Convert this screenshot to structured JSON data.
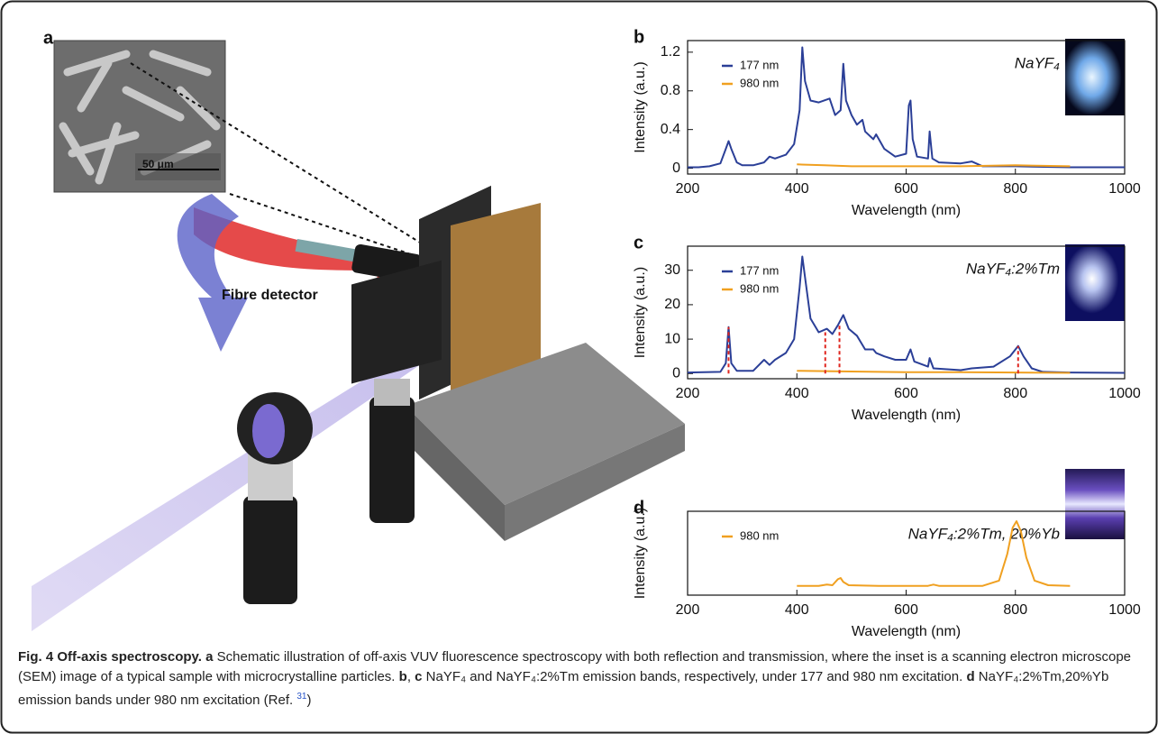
{
  "figure": {
    "panel_a": "a",
    "detector_label": "Fibre detector",
    "scale_bar": "50 μm"
  },
  "caption": {
    "title": "Fig. 4 Off-axis spectroscopy.",
    "a": "a",
    "text_a": " Schematic illustration of off-axis VUV fluorescence spectroscopy with both reflection and transmission, where the inset is a scanning electron microscope (SEM) image of a typical sample with microcrystalline particles.",
    "b": "b",
    "sep": ",",
    "c": "c",
    "text_bc": " NaYF₄ and NaYF₄:2%Tm emission bands, respectively, under 177 and 980 nm excitation.",
    "d": "d",
    "text_d": " NaYF₄:2%Tm,20%Yb emission bands under 980 nm excitation (Ref.",
    "ref": "31",
    "end": ")"
  },
  "chart_data": [
    {
      "type": "line",
      "panel": "b",
      "annotation": "NaYF₄",
      "xlabel": "Wavelength (nm)",
      "ylabel": "Intensity (a.u.)",
      "xlim": [
        200,
        1000
      ],
      "xticks": [
        200,
        400,
        600,
        800,
        1000
      ],
      "ylim": [
        -0.06,
        1.32
      ],
      "yticks": [
        0,
        0.4,
        0.8,
        1.2
      ],
      "series": [
        {
          "name": "177 nm",
          "color": "#2b3f97",
          "x": [
            200,
            220,
            240,
            260,
            270,
            275,
            280,
            290,
            300,
            320,
            340,
            350,
            360,
            380,
            395,
            405,
            410,
            415,
            425,
            440,
            460,
            470,
            480,
            485,
            490,
            500,
            510,
            520,
            525,
            540,
            545,
            560,
            580,
            600,
            605,
            608,
            612,
            620,
            640,
            643,
            648,
            660,
            700,
            720,
            740,
            800,
            900,
            1000
          ],
          "values": [
            0.01,
            0.01,
            0.02,
            0.05,
            0.2,
            0.28,
            0.2,
            0.06,
            0.03,
            0.03,
            0.06,
            0.12,
            0.1,
            0.14,
            0.25,
            0.6,
            1.25,
            0.9,
            0.7,
            0.68,
            0.72,
            0.55,
            0.6,
            1.08,
            0.7,
            0.55,
            0.45,
            0.5,
            0.38,
            0.3,
            0.35,
            0.2,
            0.12,
            0.15,
            0.65,
            0.7,
            0.3,
            0.12,
            0.1,
            0.38,
            0.1,
            0.06,
            0.05,
            0.07,
            0.02,
            0.02,
            0.01,
            0.01
          ]
        },
        {
          "name": "980 nm",
          "color": "#f0a020",
          "x": [
            400,
            450,
            500,
            600,
            700,
            800,
            900
          ],
          "values": [
            0.04,
            0.03,
            0.02,
            0.02,
            0.02,
            0.03,
            0.02
          ]
        }
      ]
    },
    {
      "type": "line",
      "panel": "c",
      "annotation": "NaYF₄:2%Tm",
      "xlabel": "Wavelength (nm)",
      "ylabel": "Intensity (a.u.)",
      "xlim": [
        200,
        1000
      ],
      "xticks": [
        200,
        400,
        600,
        800,
        1000
      ],
      "ylim": [
        -1.5,
        37
      ],
      "yticks": [
        0,
        10,
        20,
        30
      ],
      "series": [
        {
          "name": "177 nm",
          "color": "#2b3f97",
          "x": [
            200,
            260,
            270,
            275,
            280,
            290,
            320,
            340,
            350,
            360,
            380,
            395,
            405,
            410,
            415,
            425,
            440,
            455,
            465,
            475,
            485,
            495,
            510,
            525,
            540,
            545,
            560,
            580,
            600,
            608,
            615,
            640,
            643,
            650,
            700,
            720,
            760,
            790,
            805,
            815,
            830,
            850,
            900,
            1000
          ],
          "values": [
            0.3,
            0.5,
            3,
            13.5,
            3,
            0.8,
            0.8,
            4,
            2.5,
            4,
            6,
            10,
            25,
            34,
            28,
            16,
            12,
            13,
            11.5,
            14,
            17,
            13,
            11,
            7,
            7,
            6,
            5,
            4,
            4,
            7,
            3.5,
            2,
            4.5,
            1.5,
            1,
            1.5,
            2,
            5,
            8,
            5,
            1.5,
            0.5,
            0.3,
            0.2
          ]
        },
        {
          "name": "980 nm",
          "color": "#f0a020",
          "x": [
            400,
            500,
            600,
            700,
            800,
            900
          ],
          "values": [
            0.8,
            0.6,
            0.4,
            0.4,
            0.3,
            0.2
          ]
        }
      ],
      "markers": {
        "color": "#e0261f",
        "x": [
          275,
          452,
          478,
          805
        ],
        "values": [
          13.5,
          12,
          14,
          8
        ]
      }
    },
    {
      "type": "line",
      "panel": "d",
      "annotation": "NaYF₄:2%Tm, 20%Yb",
      "xlabel": "Wavelength (nm)",
      "ylabel": "Intensity (a.u.)",
      "xlim": [
        200,
        1000
      ],
      "xticks": [
        200,
        400,
        600,
        800,
        1000
      ],
      "ylim": [
        -0.12,
        1.15
      ],
      "series": [
        {
          "name": "980 nm",
          "color": "#f0a020",
          "x": [
            400,
            440,
            455,
            465,
            475,
            480,
            485,
            495,
            550,
            640,
            650,
            660,
            740,
            770,
            785,
            795,
            802,
            810,
            820,
            835,
            860,
            900
          ],
          "values": [
            0.02,
            0.02,
            0.04,
            0.03,
            0.12,
            0.14,
            0.08,
            0.03,
            0.02,
            0.02,
            0.04,
            0.02,
            0.02,
            0.1,
            0.5,
            0.9,
            1.0,
            0.85,
            0.45,
            0.1,
            0.03,
            0.02
          ]
        }
      ]
    }
  ]
}
